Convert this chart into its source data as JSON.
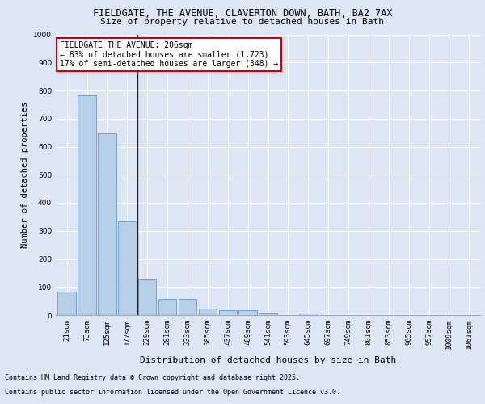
{
  "title_line1": "FIELDGATE, THE AVENUE, CLAVERTON DOWN, BATH, BA2 7AX",
  "title_line2": "Size of property relative to detached houses in Bath",
  "xlabel": "Distribution of detached houses by size in Bath",
  "ylabel": "Number of detached properties",
  "categories": [
    "21sqm",
    "73sqm",
    "125sqm",
    "177sqm",
    "229sqm",
    "281sqm",
    "333sqm",
    "385sqm",
    "437sqm",
    "489sqm",
    "541sqm",
    "593sqm",
    "645sqm",
    "697sqm",
    "749sqm",
    "801sqm",
    "853sqm",
    "905sqm",
    "957sqm",
    "1009sqm",
    "1061sqm"
  ],
  "bar_values": [
    83,
    783,
    648,
    335,
    130,
    57,
    57,
    22,
    18,
    18,
    9,
    1,
    7,
    0,
    0,
    0,
    0,
    0,
    0,
    0,
    0
  ],
  "bar_color": "#b8cfe8",
  "bar_edge_color": "#6699cc",
  "vline_color": "#222222",
  "annotation_title": "FIELDGATE THE AVENUE: 206sqm",
  "annotation_line1": "← 83% of detached houses are smaller (1,723)",
  "annotation_line2": "17% of semi-detached houses are larger (348) →",
  "annotation_box_facecolor": "#ffffff",
  "annotation_box_edgecolor": "#cc0000",
  "ylim": [
    0,
    1000
  ],
  "yticks": [
    0,
    100,
    200,
    300,
    400,
    500,
    600,
    700,
    800,
    900,
    1000
  ],
  "footnote1": "Contains HM Land Registry data © Crown copyright and database right 2025.",
  "footnote2": "Contains public sector information licensed under the Open Government Licence v3.0.",
  "bg_color": "#dce6f5",
  "plot_bg_color": "#dce6f5",
  "title_fontsize": 8.5,
  "subtitle_fontsize": 8.0,
  "tick_fontsize": 6.5,
  "ylabel_fontsize": 7.5,
  "xlabel_fontsize": 8.0,
  "annot_fontsize": 7.0,
  "footnote_fontsize": 6.0
}
